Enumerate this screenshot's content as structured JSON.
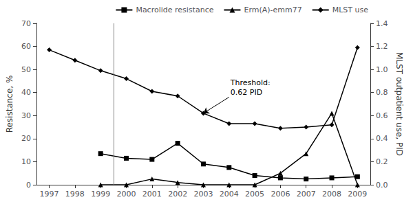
{
  "chart_data": {
    "type": "line",
    "xlim": [
      1996.5,
      2009.5
    ],
    "xticks": [
      1997,
      1998,
      1999,
      2000,
      2001,
      2002,
      2003,
      2004,
      2005,
      2006,
      2007,
      2008,
      2009
    ],
    "ylabel": "Resistance, %",
    "ylim": [
      0,
      70
    ],
    "yticks": [
      0,
      10,
      20,
      30,
      40,
      50,
      60,
      70
    ],
    "y2label": "MLST outpatient use, PID",
    "y2lim": [
      0,
      1.4
    ],
    "y2ticks": [
      {
        "value": 0.0,
        "label": "0.0"
      },
      0.2,
      0.4,
      0.6,
      0.8,
      {
        "value": 1.0,
        "label": "1.0"
      },
      1.2,
      1.4
    ],
    "grid": false,
    "legend": "upper right",
    "vline_x": 1999.5,
    "annotations": [
      {
        "text": "Threshold:\n0.62 PID",
        "x": 2004.0,
        "y": 0.76,
        "arrow_x": 2003,
        "arrow_y": 0.62,
        "axis": "y2"
      }
    ],
    "series": [
      {
        "name": "Macrolide resistance",
        "color": "#000000",
        "marker": "square",
        "x": [
          1999,
          2000,
          2001,
          2002,
          2003,
          2004,
          2005,
          2006,
          2007,
          2008,
          2009
        ],
        "values": [
          13.5,
          11.5,
          11.0,
          18.0,
          9.0,
          7.5,
          4.0,
          3.0,
          2.5,
          3.0,
          3.5
        ]
      },
      {
        "name": "Erm(A)-emm77",
        "color": "#000000",
        "marker": "triangle",
        "x": [
          1999,
          2000,
          2001,
          2002,
          2003,
          2004,
          2005,
          2006,
          2007,
          2008,
          2009
        ],
        "values": [
          0.0,
          0.0,
          2.5,
          1.0,
          0.0,
          0.0,
          0.0,
          5.0,
          13.5,
          31.0,
          0.0
        ]
      },
      {
        "name": "MLST use",
        "color": "#000000",
        "marker": "diamond",
        "axis": "y2",
        "x": [
          1997,
          1998,
          1999,
          2000,
          2001,
          2002,
          2003,
          2004,
          2005,
          2006,
          2007,
          2008,
          2009
        ],
        "values": [
          1.17,
          1.08,
          0.99,
          0.92,
          0.81,
          0.77,
          0.62,
          0.53,
          0.53,
          0.49,
          0.5,
          0.52,
          1.19
        ]
      }
    ]
  }
}
